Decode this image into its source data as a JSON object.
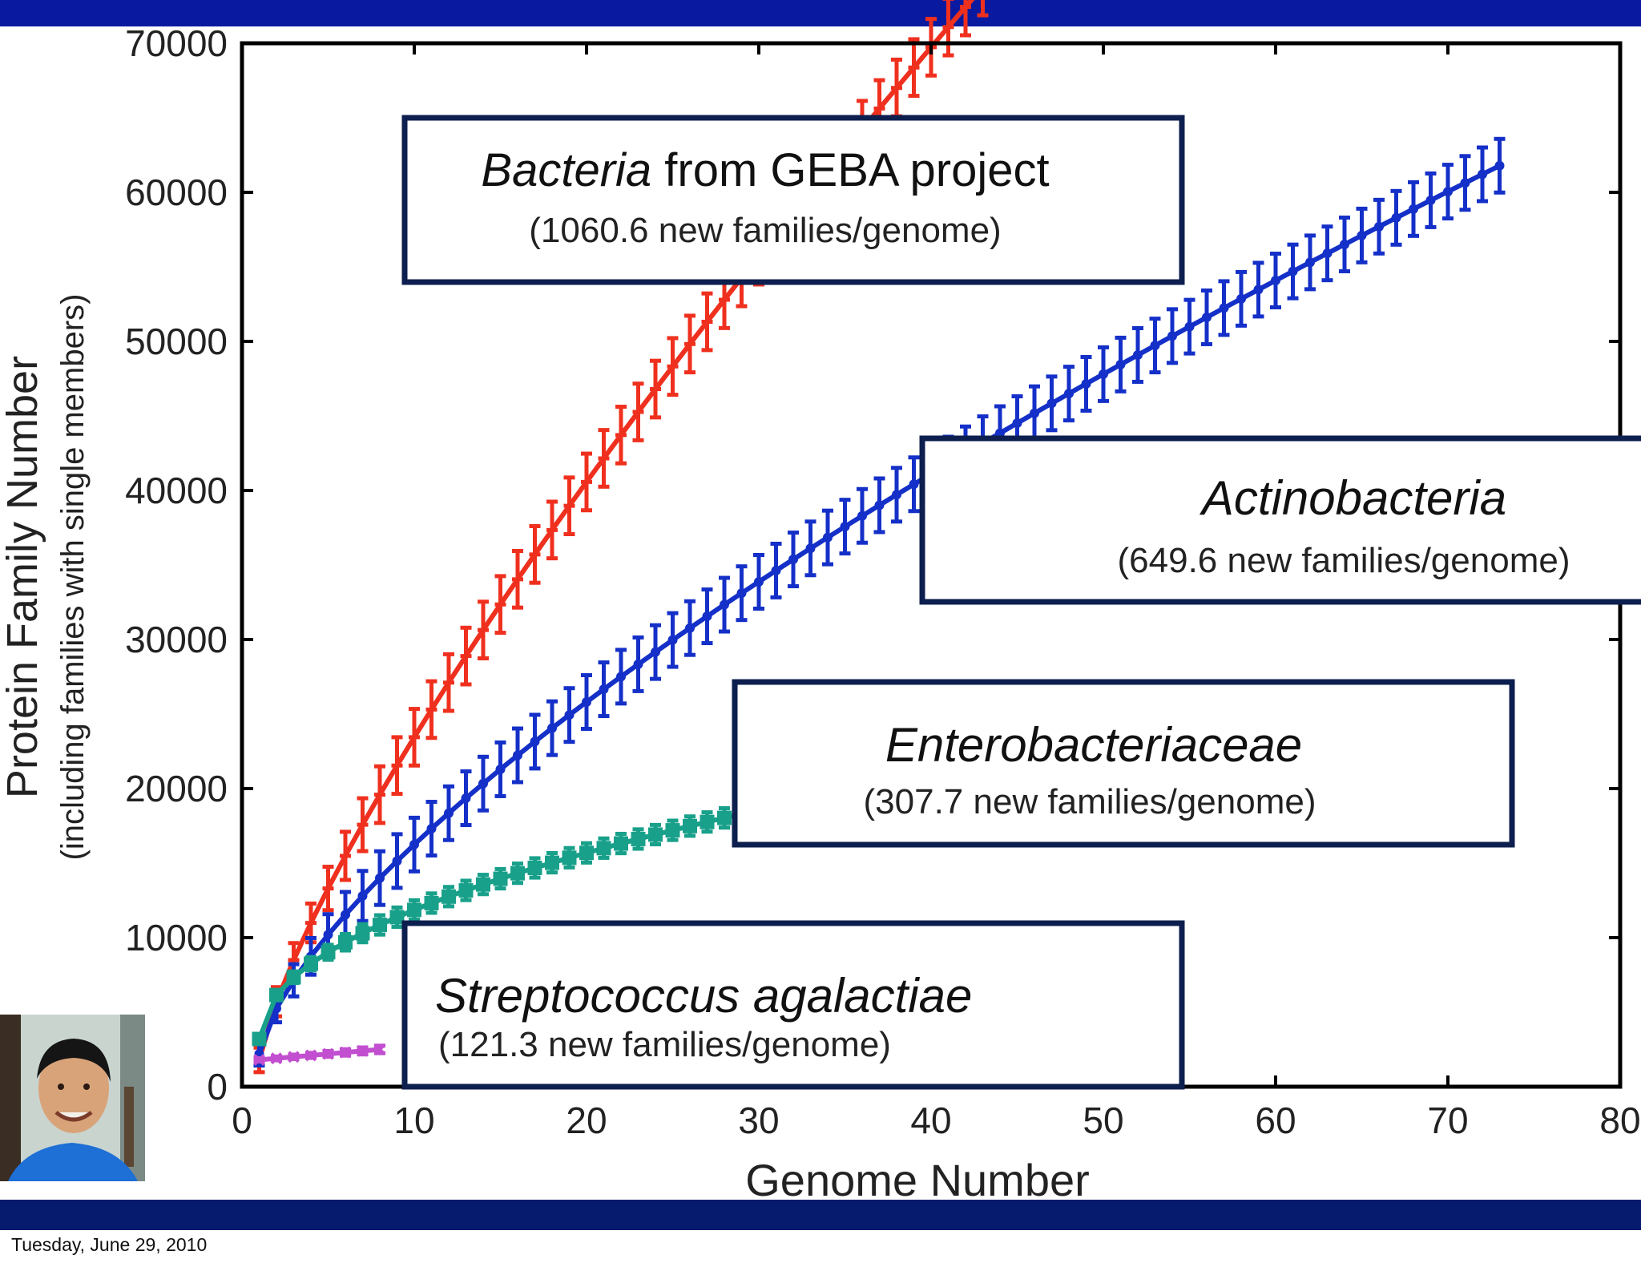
{
  "footer": {
    "date": "Tuesday, June 29, 2010"
  },
  "colors": {
    "band_top": "#0a1aa0",
    "band_bottom": "#061b6e",
    "box_border": "#0d1f4f",
    "bacteria": "#f0301e",
    "actino": "#1430c8",
    "entero": "#18a08a",
    "strep": "#c24fd0"
  },
  "icons": {
    "presenter": "presenter-photo"
  },
  "chart_data": {
    "type": "line",
    "title": "",
    "xlabel": "Genome Number",
    "ylabel": "Protein Family Number",
    "ylabel_sub": "(including families with single members)",
    "xlim": [
      0,
      80
    ],
    "ylim": [
      0,
      70000
    ],
    "x_ticks": [
      "0",
      "10",
      "20",
      "30",
      "40",
      "50",
      "60",
      "70",
      "80"
    ],
    "y_ticks": [
      "0",
      "10000",
      "20000",
      "30000",
      "40000",
      "50000",
      "60000",
      "70000"
    ],
    "series": [
      {
        "name": "Bacteria from GEBA project",
        "color": "#f0301e",
        "marker": "cross",
        "n": 53,
        "a": 1800,
        "b": 3900,
        "p": 0.78,
        "err": 1900
      },
      {
        "name": "Actinobacteria",
        "color": "#1430c8",
        "marker": "circle",
        "n": 73,
        "a": 2200,
        "b": 3050,
        "p": 0.695,
        "err": 1800
      },
      {
        "name": "Enterobacteriaceae",
        "color": "#18a08a",
        "marker": "square",
        "n": 40,
        "a": 3200,
        "b": 2950,
        "p": 0.49,
        "err": 650
      },
      {
        "name": "Streptococcus agalactiae",
        "color": "#c24fd0",
        "marker": "x",
        "n": 8,
        "a": 1800,
        "b": 100,
        "p": 1.0,
        "err": 250
      }
    ],
    "annotations": [
      {
        "italic": "Bacteria",
        "rest": " from GEBA project",
        "sub": "(1060.6 new families/genome)"
      },
      {
        "italic": "Actinobacteria",
        "rest": "",
        "sub": "(649.6 new families/genome)"
      },
      {
        "italic": "Enterobacteriaceae",
        "rest": "",
        "sub": "(307.7 new families/genome)"
      },
      {
        "italic": "Streptococcus agalactiae",
        "rest": "",
        "sub": "(121.3 new families/genome)"
      }
    ]
  }
}
